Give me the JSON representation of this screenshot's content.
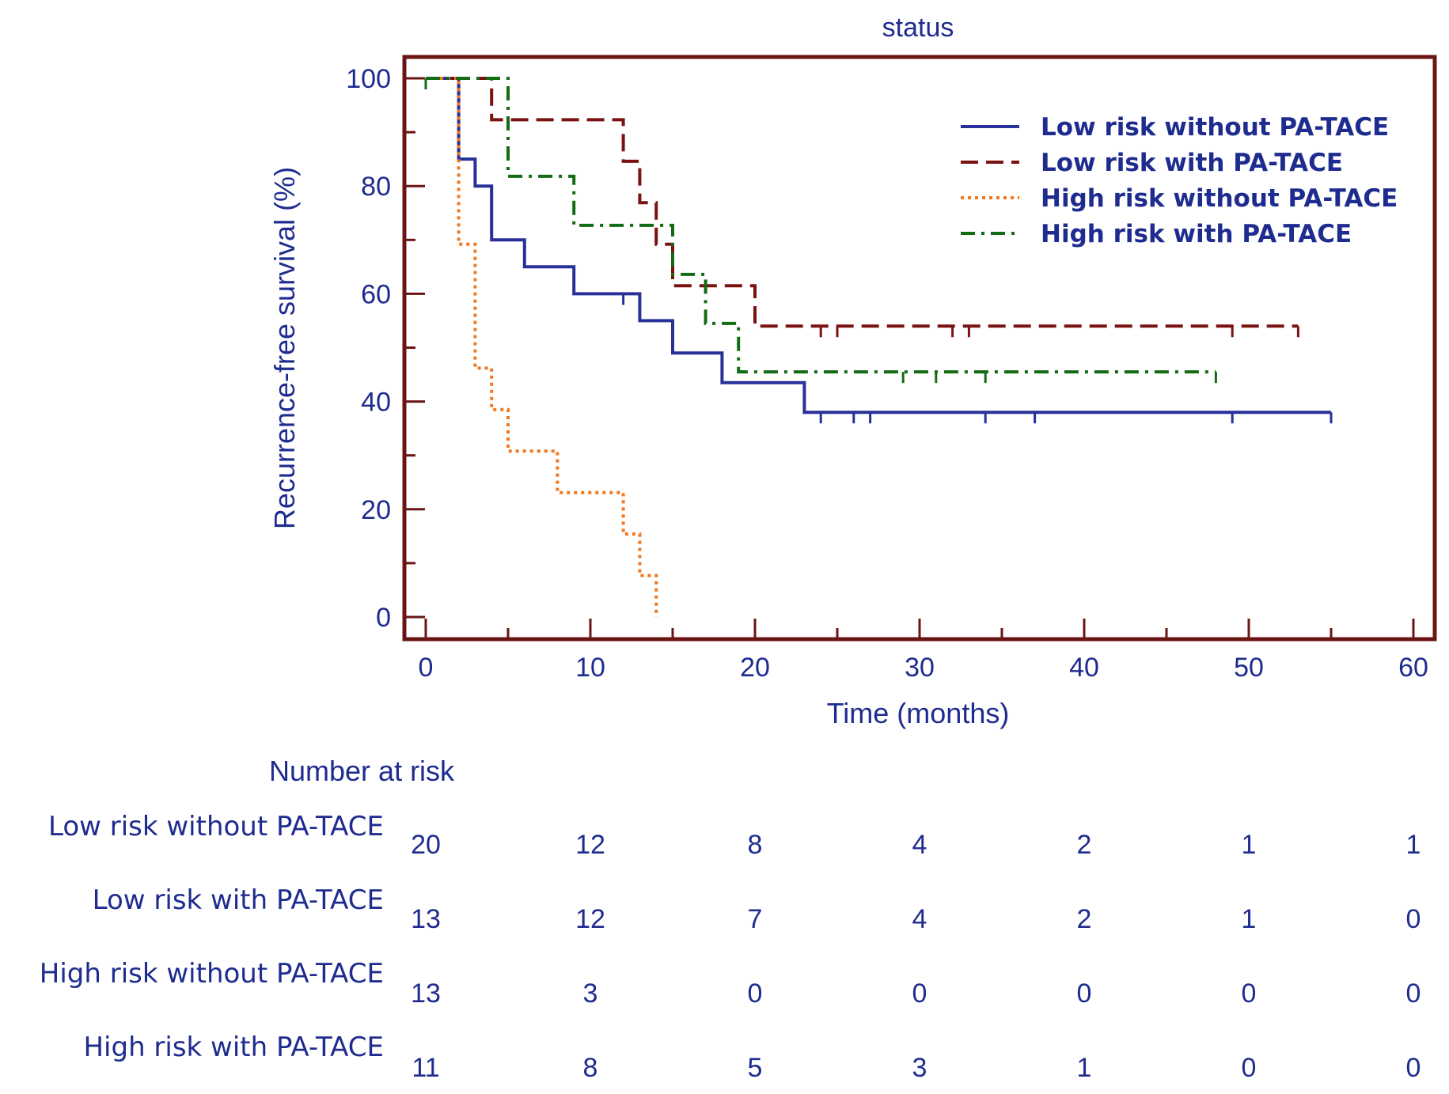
{
  "chart_data": {
    "type": "line",
    "subtype": "kaplan-meier",
    "title": "status",
    "xlabel": "Time (months)",
    "ylabel": "Recurrence-free survival (%)",
    "xlim": [
      0,
      60
    ],
    "ylim": [
      0,
      100
    ],
    "xticks": [
      0,
      10,
      20,
      30,
      40,
      50,
      60
    ],
    "yticks": [
      0,
      20,
      40,
      60,
      80,
      100
    ],
    "legend_position": "top-right",
    "series": [
      {
        "name": "Low risk without PA-TACE",
        "color": "#28309a",
        "style": "solid",
        "steps": [
          [
            0,
            100
          ],
          [
            2,
            100
          ],
          [
            2,
            85
          ],
          [
            3,
            85
          ],
          [
            3,
            80
          ],
          [
            4,
            80
          ],
          [
            4,
            70
          ],
          [
            6,
            70
          ],
          [
            6,
            65
          ],
          [
            9,
            65
          ],
          [
            9,
            60
          ],
          [
            13,
            60
          ],
          [
            13,
            55
          ],
          [
            15,
            55
          ],
          [
            15,
            49
          ],
          [
            18,
            49
          ],
          [
            18,
            43.5
          ],
          [
            23,
            43.5
          ],
          [
            23,
            38
          ],
          [
            55,
            38
          ]
        ],
        "censor": [
          12,
          24,
          26,
          27,
          34,
          37,
          49,
          55
        ]
      },
      {
        "name": "Low risk with PA-TACE",
        "color": "#7a1212",
        "style": "dashed",
        "steps": [
          [
            0,
            100
          ],
          [
            4,
            100
          ],
          [
            4,
            92.3
          ],
          [
            12,
            92.3
          ],
          [
            12,
            84.6
          ],
          [
            13,
            84.6
          ],
          [
            13,
            76.9
          ],
          [
            14,
            76.9
          ],
          [
            14,
            69.2
          ],
          [
            15,
            69.2
          ],
          [
            15,
            61.5
          ],
          [
            20,
            61.5
          ],
          [
            20,
            54
          ],
          [
            53,
            54
          ]
        ],
        "censor": [
          24,
          25,
          32,
          33,
          49,
          53
        ]
      },
      {
        "name": "High risk without PA-TACE",
        "color": "#f07820",
        "style": "dotted",
        "steps": [
          [
            0,
            100
          ],
          [
            2,
            100
          ],
          [
            2,
            69.2
          ],
          [
            3,
            69.2
          ],
          [
            3,
            46.2
          ],
          [
            4,
            46.2
          ],
          [
            4,
            38.5
          ],
          [
            5,
            38.5
          ],
          [
            5,
            30.8
          ],
          [
            8,
            30.8
          ],
          [
            8,
            23.1
          ],
          [
            12,
            23.1
          ],
          [
            12,
            15.4
          ],
          [
            13,
            15.4
          ],
          [
            13,
            7.7
          ],
          [
            14,
            7.7
          ],
          [
            14,
            0
          ]
        ],
        "censor": []
      },
      {
        "name": "High risk with PA-TACE",
        "color": "#136b13",
        "style": "dashdot",
        "steps": [
          [
            0,
            100
          ],
          [
            5,
            100
          ],
          [
            5,
            81.8
          ],
          [
            9,
            81.8
          ],
          [
            9,
            72.7
          ],
          [
            15,
            72.7
          ],
          [
            15,
            63.6
          ],
          [
            17,
            63.6
          ],
          [
            17,
            54.5
          ],
          [
            19,
            54.5
          ],
          [
            19,
            45.5
          ],
          [
            48,
            45.5
          ]
        ],
        "censor": [
          0,
          29,
          31,
          34,
          48
        ]
      }
    ]
  },
  "risk_table": {
    "title": "Number at risk",
    "rows": [
      {
        "label": "Low risk without PA-TACE",
        "values": [
          "20",
          "12",
          "8",
          "4",
          "2",
          "1",
          "1"
        ]
      },
      {
        "label": "Low risk with PA-TACE",
        "values": [
          "13",
          "12",
          "7",
          "4",
          "2",
          "1",
          "0"
        ]
      },
      {
        "label": "High risk without PA-TACE",
        "values": [
          "13",
          "3",
          "0",
          "0",
          "0",
          "0",
          "0"
        ]
      },
      {
        "label": "High risk with PA-TACE",
        "values": [
          "11",
          "8",
          "5",
          "3",
          "1",
          "0",
          "0"
        ]
      }
    ]
  }
}
